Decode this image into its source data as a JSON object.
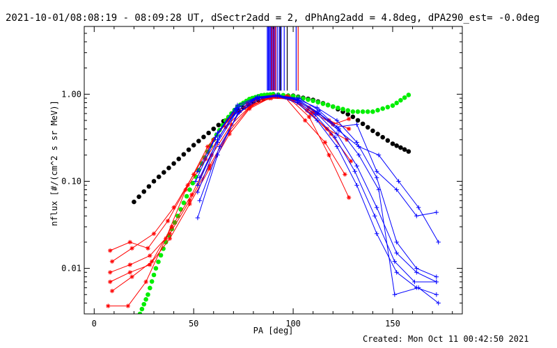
{
  "header": {
    "title": "2021-10-01/08:08:19 - 08:09:28 UT, dSectr2add = 2, dPhAng2add = 4.8deg, dPA290_est= -0.0deg"
  },
  "footer": {
    "created": "Created: Mon Oct 11 00:42:50 2021"
  },
  "chart_data": {
    "type": "line",
    "title": "2021-10-01/08:08:19 - 08:09:28 UT, dSectr2add = 2, dPhAng2add = 4.8deg, dPA290_est= -0.0deg",
    "xlabel": "PA [deg]",
    "ylabel": "nflux [#/(cm^2 s sr MeV)]",
    "xlim": [
      -5,
      185
    ],
    "ylim": [
      0.003,
      6
    ],
    "yscale": "log",
    "grid": false,
    "x_ticks": [
      0,
      50,
      100,
      150
    ],
    "x_tick_labels": [
      "0",
      "50",
      "100",
      "150"
    ],
    "y_ticks": [
      0.01,
      0.1,
      1.0
    ],
    "y_tick_labels": [
      "0.01",
      "0.10",
      "1.00"
    ],
    "colors": {
      "black": "#000000",
      "green": "#00ee00",
      "red": "#ff0000",
      "blue": "#0000ff"
    },
    "series": [
      {
        "color": "#000000",
        "marker": "filled-circle",
        "x": [
          20,
          30,
          40,
          50,
          60,
          70,
          80,
          90,
          100,
          110,
          120,
          130,
          140,
          150,
          158
        ],
        "y": [
          0.058,
          0.1,
          0.16,
          0.26,
          0.4,
          0.6,
          0.82,
          0.97,
          0.96,
          0.86,
          0.72,
          0.55,
          0.38,
          0.27,
          0.22
        ]
      },
      {
        "color": "#00ee00",
        "marker": "filled-circle",
        "x": [
          23,
          27,
          31,
          36,
          42,
          48,
          54,
          60,
          66,
          72,
          78,
          84,
          90,
          100,
          110,
          120,
          130,
          140,
          150,
          158
        ],
        "y": [
          0.003,
          0.005,
          0.01,
          0.02,
          0.04,
          0.08,
          0.16,
          0.3,
          0.5,
          0.72,
          0.88,
          0.97,
          1.0,
          0.95,
          0.84,
          0.72,
          0.63,
          0.63,
          0.74,
          0.98
        ]
      },
      {
        "color": "#ff0000",
        "marker": "star",
        "lines": [
          {
            "x": [
              8,
              18,
              28,
              38,
              48,
              58,
              68,
              78,
              88,
              98,
              108,
              118,
              128
            ],
            "y": [
              0.009,
              0.011,
              0.014,
              0.025,
              0.06,
              0.15,
              0.38,
              0.7,
              0.93,
              0.9,
              0.55,
              0.2,
              0.065
            ]
          },
          {
            "x": [
              9,
              19,
              29,
              39,
              49,
              59,
              69,
              79,
              89,
              99,
              109,
              119,
              129
            ],
            "y": [
              0.0055,
              0.008,
              0.012,
              0.03,
              0.07,
              0.2,
              0.45,
              0.75,
              0.9,
              0.88,
              0.6,
              0.35,
              0.17
            ]
          },
          {
            "x": [
              8,
              18,
              27,
              37,
              47,
              57,
              67,
              77,
              87,
              97,
              107,
              117,
              127
            ],
            "y": [
              0.016,
              0.02,
              0.017,
              0.035,
              0.09,
              0.25,
              0.5,
              0.78,
              0.92,
              0.95,
              0.65,
              0.4,
              0.3
            ]
          },
          {
            "x": [
              7,
              17,
              26,
              36,
              46,
              56,
              66,
              76,
              86,
              96,
              106,
              116,
              126
            ],
            "y": [
              0.0037,
              0.0037,
              0.007,
              0.022,
              0.08,
              0.18,
              0.42,
              0.7,
              0.9,
              0.92,
              0.5,
              0.28,
              0.12
            ]
          },
          {
            "x": [
              9,
              19,
              30,
              40,
              50,
              60,
              70,
              80,
              90,
              100,
              110,
              120,
              128
            ],
            "y": [
              0.012,
              0.017,
              0.025,
              0.05,
              0.12,
              0.3,
              0.6,
              0.85,
              0.95,
              0.85,
              0.62,
              0.45,
              0.52
            ]
          },
          {
            "x": [
              8,
              18,
              28,
              38,
              48,
              58,
              68,
              78,
              88,
              98,
              108,
              118,
              128
            ],
            "y": [
              0.007,
              0.009,
              0.011,
              0.022,
              0.055,
              0.14,
              0.35,
              0.68,
              0.9,
              0.92,
              0.7,
              0.5,
              0.4
            ]
          }
        ]
      },
      {
        "color": "#0000ff",
        "marker": "plus",
        "lines": [
          {
            "x": [
              52,
              62,
              72,
              82,
              92,
              102,
              112,
              122,
              132,
              142,
              152,
              162,
              172
            ],
            "y": [
              0.038,
              0.2,
              0.6,
              0.9,
              0.95,
              0.8,
              0.5,
              0.25,
              0.09,
              0.025,
              0.009,
              0.006,
              0.005
            ]
          },
          {
            "x": [
              52,
              62,
              72,
              82,
              92,
              102,
              112,
              122,
              132,
              142,
              152,
              162,
              172
            ],
            "y": [
              0.09,
              0.3,
              0.7,
              0.92,
              0.97,
              0.85,
              0.6,
              0.35,
              0.15,
              0.05,
              0.015,
              0.009,
              0.007
            ]
          },
          {
            "x": [
              53,
              63,
              73,
              83,
              93,
              103,
              113,
              123,
              133,
              143,
              151,
              163,
              173
            ],
            "y": [
              0.06,
              0.25,
              0.62,
              0.88,
              0.96,
              0.9,
              0.65,
              0.4,
              0.2,
              0.08,
              0.005,
              0.006,
              0.004
            ]
          },
          {
            "x": [
              52,
              62,
              72,
              82,
              92,
              102,
              112,
              122,
              132,
              142,
              152,
              162,
              172
            ],
            "y": [
              0.13,
              0.36,
              0.75,
              0.93,
              0.98,
              0.88,
              0.7,
              0.5,
              0.28,
              0.11,
              0.02,
              0.01,
              0.008
            ]
          },
          {
            "x": [
              51,
              61,
              71,
              81,
              91,
              101,
              111,
              121,
              131,
              141,
              151,
              161,
              172
            ],
            "y": [
              0.1,
              0.32,
              0.68,
              0.9,
              0.96,
              0.86,
              0.58,
              0.32,
              0.13,
              0.04,
              0.012,
              0.007,
              0.007
            ]
          },
          {
            "x": [
              52,
              62,
              72,
              82,
              92,
              102,
              112,
              122,
              132,
              142,
              152,
              162,
              172
            ],
            "y": [
              0.075,
              0.28,
              0.65,
              0.9,
              0.97,
              0.87,
              0.63,
              0.42,
              0.45,
              0.13,
              0.08,
              0.04,
              0.044
            ]
          },
          {
            "x": [
              53,
              63,
              73,
              83,
              93,
              103,
              113,
              123,
              133,
              143,
              153,
              163,
              173
            ],
            "y": [
              0.11,
              0.33,
              0.72,
              0.92,
              0.97,
              0.85,
              0.6,
              0.38,
              0.25,
              0.2,
              0.1,
              0.05,
              0.02
            ]
          }
        ]
      }
    ],
    "vertical_lines": {
      "y_from": 1.1,
      "blue_x": [
        87.0,
        87.5,
        88.0,
        88.5,
        89.0,
        89.5,
        90.0,
        90.5,
        91.0,
        92.0,
        93.0,
        94.0,
        95.5,
        101.5
      ],
      "red_x": [
        89.2,
        90.2,
        91.2,
        102.5
      ],
      "black_x": [
        93.5,
        97.0
      ]
    }
  }
}
